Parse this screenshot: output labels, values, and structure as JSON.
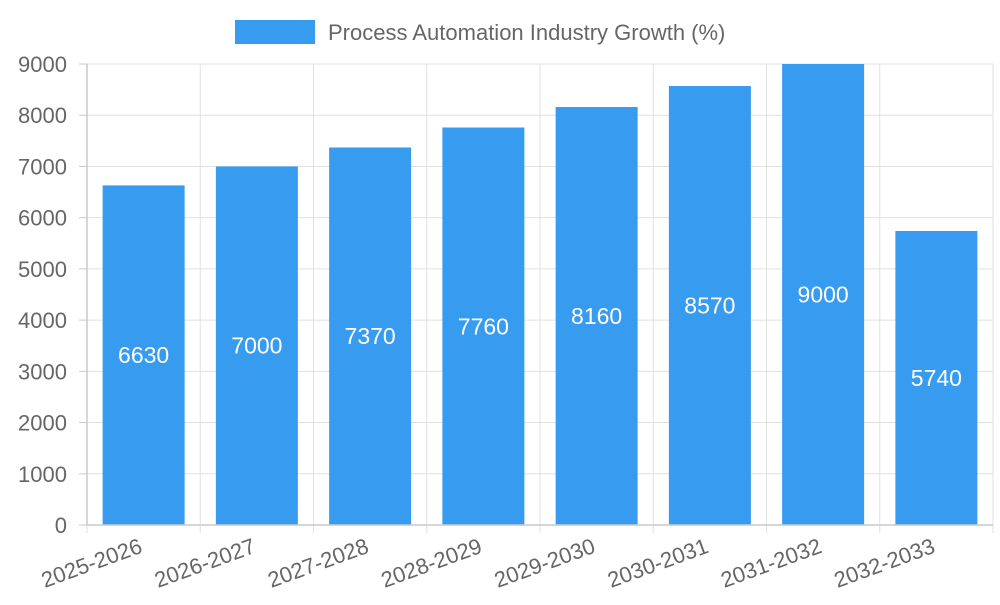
{
  "chart_data": {
    "type": "bar",
    "title": "",
    "xlabel": "",
    "ylabel": "",
    "categories": [
      "2025-2026",
      "2026-2027",
      "2027-2028",
      "2028-2029",
      "2029-2030",
      "2030-2031",
      "2031-2032",
      "2032-2033"
    ],
    "series": [
      {
        "name": "Process Automation Industry Growth (%)",
        "values": [
          6630,
          7000,
          7370,
          7760,
          8160,
          8570,
          9000,
          5740
        ],
        "color": "#379bf0"
      }
    ],
    "ylim": [
      0,
      9000
    ],
    "ytick_step": 1000,
    "yticks": [
      "0",
      "1000",
      "2000",
      "3000",
      "4000",
      "5000",
      "6000",
      "7000",
      "8000",
      "9000"
    ],
    "data_labels": true,
    "grid": true,
    "legend_position": "top-center",
    "colors": {
      "bar": "#379bf0",
      "grid": "#e0e0e0",
      "axis": "#c9c9c9",
      "tick_text": "#666666",
      "data_label": "#ffffff"
    }
  }
}
